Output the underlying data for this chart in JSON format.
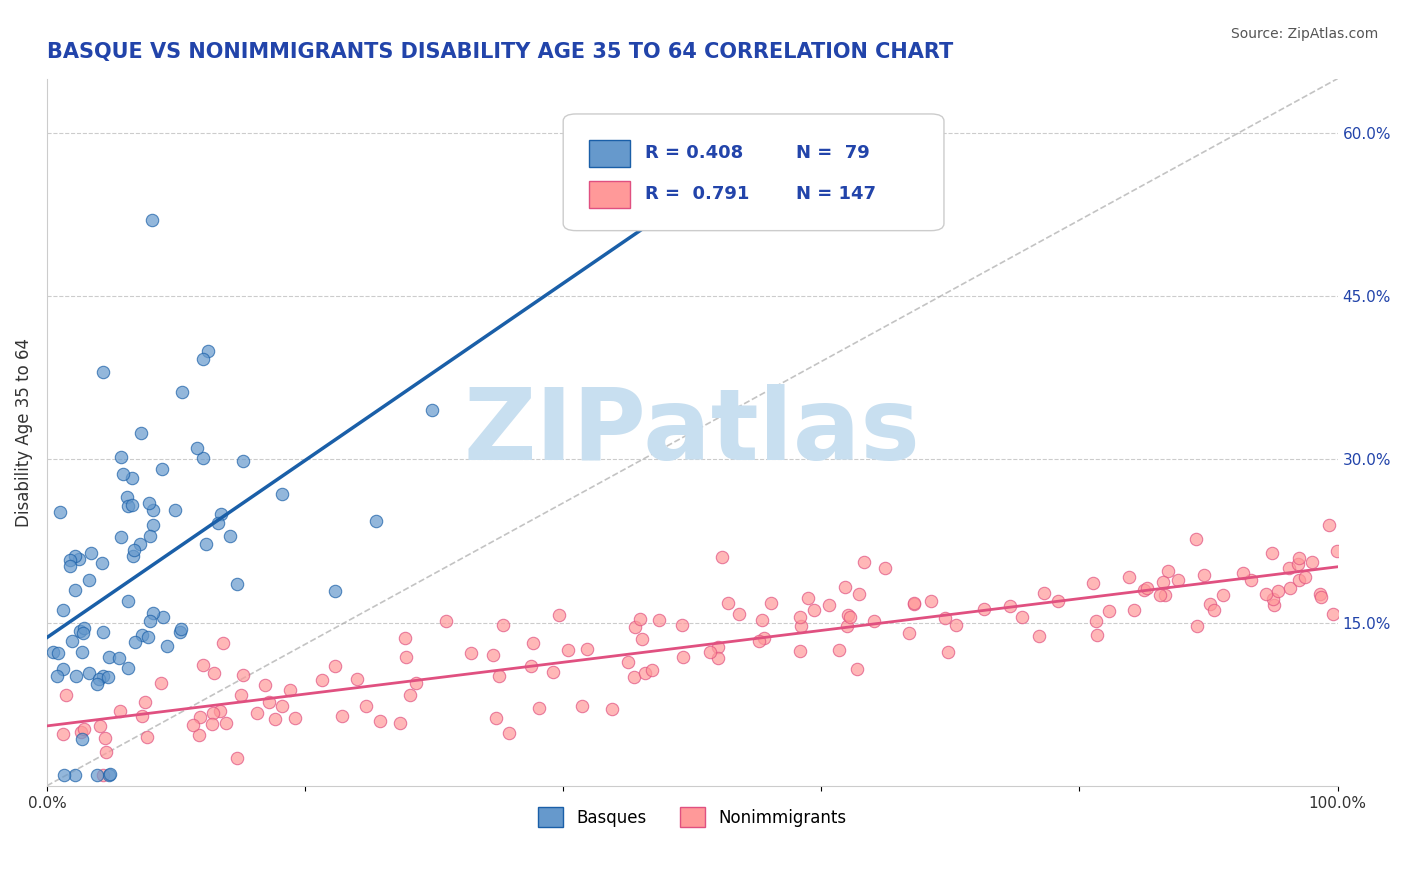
{
  "title": "BASQUE VS NONIMMIGRANTS DISABILITY AGE 35 TO 64 CORRELATION CHART",
  "source": "Source: ZipAtlas.com",
  "ylabel": "Disability Age 35 to 64",
  "xlabel": "",
  "xlim": [
    0.0,
    1.0
  ],
  "ylim": [
    0.0,
    0.65
  ],
  "xticks": [
    0.0,
    0.2,
    0.4,
    0.6,
    0.8,
    1.0
  ],
  "xtick_labels": [
    "0.0%",
    "",
    "",
    "",
    "",
    "100.0%"
  ],
  "yticks_right": [
    0.15,
    0.3,
    0.45,
    0.6
  ],
  "ytick_labels_right": [
    "15.0%",
    "30.0%",
    "45.0%",
    "60.0%"
  ],
  "basque_R": 0.408,
  "basque_N": 79,
  "nonimm_R": 0.791,
  "nonimm_N": 147,
  "blue_color": "#6699CC",
  "pink_color": "#FF9999",
  "blue_line_color": "#1a5fa8",
  "pink_line_color": "#e05080",
  "watermark": "ZIPatlas",
  "watermark_color": "#c8dff0",
  "legend_labels": [
    "Basques",
    "Nonimmigrants"
  ],
  "grid_color": "#cccccc",
  "background_color": "#ffffff",
  "title_color": "#2244aa",
  "source_color": "#555555"
}
